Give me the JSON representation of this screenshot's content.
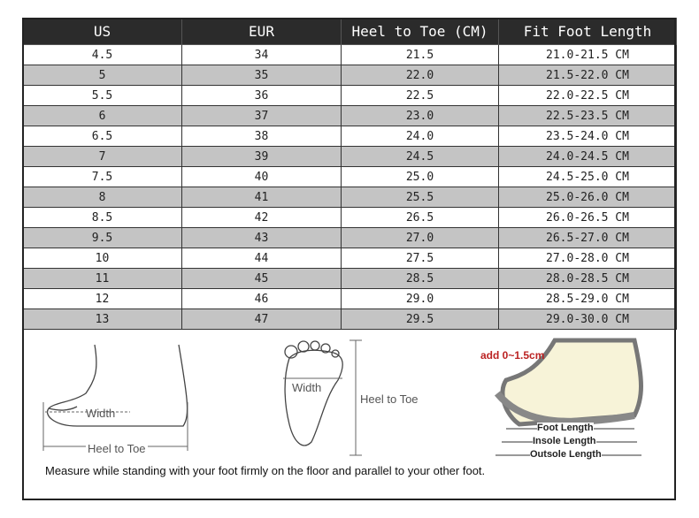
{
  "table": {
    "headers": [
      "US",
      "EUR",
      "Heel to Toe (CM)",
      "Fit Foot Length"
    ],
    "rows": [
      [
        "4.5",
        "34",
        "21.5",
        "21.0-21.5 CM"
      ],
      [
        "5",
        "35",
        "22.0",
        "21.5-22.0 CM"
      ],
      [
        "5.5",
        "36",
        "22.5",
        "22.0-22.5 CM"
      ],
      [
        "6",
        "37",
        "23.0",
        "22.5-23.5 CM"
      ],
      [
        "6.5",
        "38",
        "24.0",
        "23.5-24.0 CM"
      ],
      [
        "7",
        "39",
        "24.5",
        "24.0-24.5 CM"
      ],
      [
        "7.5",
        "40",
        "25.0",
        "24.5-25.0 CM"
      ],
      [
        "8",
        "41",
        "25.5",
        "25.0-26.0 CM"
      ],
      [
        "8.5",
        "42",
        "26.5",
        "26.0-26.5 CM"
      ],
      [
        "9.5",
        "43",
        "27.0",
        "26.5-27.0 CM"
      ],
      [
        "10",
        "44",
        "27.5",
        "27.0-28.0 CM"
      ],
      [
        "11",
        "45",
        "28.5",
        "28.0-28.5 CM"
      ],
      [
        "12",
        "46",
        "29.0",
        "28.5-29.0 CM"
      ],
      [
        "13",
        "47",
        "29.5",
        "29.0-30.0 CM"
      ]
    ]
  },
  "diagrams": {
    "side_width": "Width",
    "side_heel_to_toe": "Heel to Toe",
    "top_width": "Width",
    "top_heel_to_toe": "Heel to Toe",
    "shoe_add": "add 0~1.5cm",
    "shoe_foot_length": "Foot Length",
    "shoe_insole_length": "Insole Length",
    "shoe_outsole_length": "Outsole Length"
  },
  "note": "Measure while standing with your foot firmly on the floor and parallel to your other foot."
}
